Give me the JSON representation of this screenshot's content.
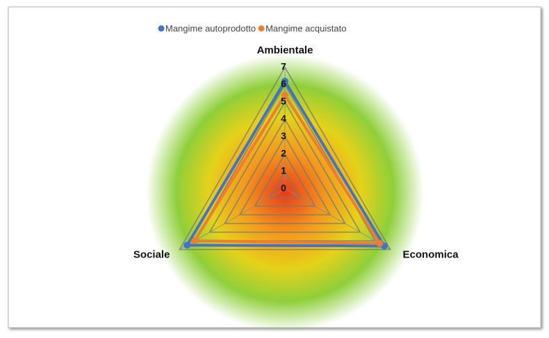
{
  "chart_data": {
    "type": "radar",
    "categories": [
      "Ambientale",
      "Economica",
      "Sociale"
    ],
    "series": [
      {
        "name": "Mangime autoprodotto",
        "color": "#4472c4",
        "values": [
          6.2,
          6.6,
          6.5
        ]
      },
      {
        "name": "Mangime acquistato",
        "color": "#ed7d31",
        "values": [
          5.4,
          6.3,
          6.0
        ]
      }
    ],
    "rlim": [
      0,
      7
    ],
    "rticks": [
      0,
      1,
      2,
      3,
      4,
      5,
      6,
      7
    ],
    "grid": true,
    "legend": "top"
  }
}
